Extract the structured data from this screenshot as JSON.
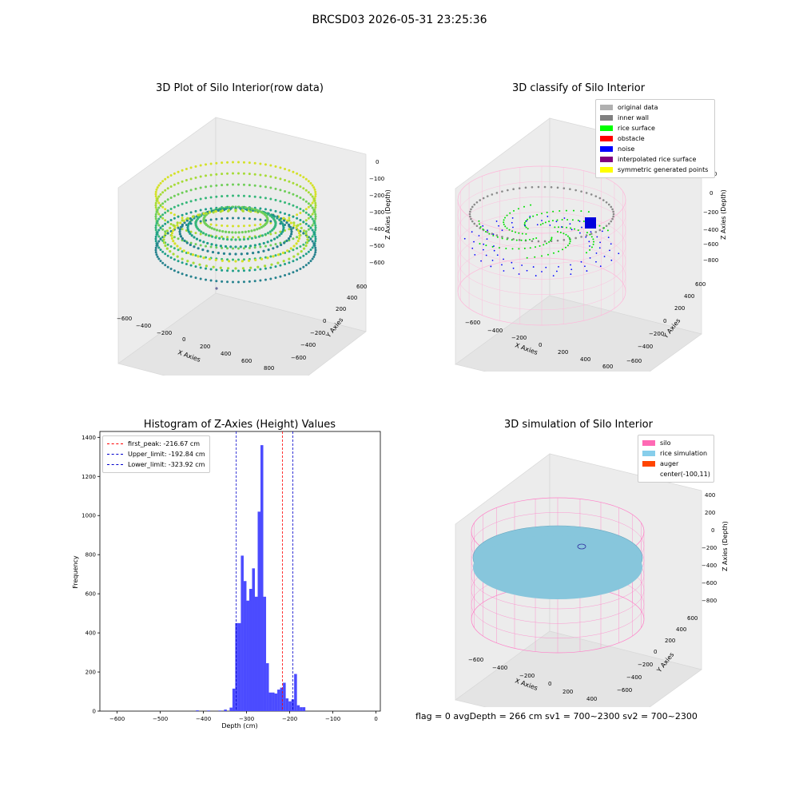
{
  "suptitle": "BRCSD03 2026-05-31 23:25:36",
  "footer": "flag = 0     avgDepth = 266 cm  sv1 = 700~2300  sv2 = 700~2300",
  "chart_data": [
    {
      "type": "scatter",
      "title": "3D Plot of Silo Interior(row data)",
      "xlabel": "X Axies",
      "ylabel": "Y Axies",
      "zlabel": "Z Axies (Depth)",
      "x_ticks": [
        "−600",
        "−400",
        "−200",
        "0",
        "200",
        "400",
        "600",
        "800"
      ],
      "y_ticks": [
        "−600",
        "−400",
        "−200",
        "0",
        "200",
        "400",
        "600"
      ],
      "z_ticks": [
        "0",
        "−100",
        "−200",
        "−300",
        "−400",
        "−500",
        "−600"
      ],
      "colormap": "viridis",
      "grid": true
    },
    {
      "type": "scatter",
      "title": "3D classify of Silo Interior",
      "xlabel": "X Axies",
      "ylabel": "Y Axies",
      "zlabel": "Z Axies (Depth)",
      "x_ticks": [
        "−600",
        "−400",
        "−200",
        "0",
        "200",
        "400",
        "600"
      ],
      "y_ticks": [
        "−600",
        "−400",
        "−200",
        "0",
        "200",
        "400",
        "600"
      ],
      "z_ticks": [
        "200",
        "0",
        "−200",
        "−400",
        "−600",
        "−800"
      ],
      "legend": [
        {
          "name": "original data",
          "color": "#b0b0b0"
        },
        {
          "name": "inner wall",
          "color": "#808080"
        },
        {
          "name": "rice surface",
          "color": "#00ff00"
        },
        {
          "name": "obstacle",
          "color": "#ff0000"
        },
        {
          "name": "noise",
          "color": "#0000ff"
        },
        {
          "name": "interpolated rice surface",
          "color": "#800080"
        },
        {
          "name": "symmetric generated points",
          "color": "#ffff00"
        }
      ],
      "legend_position": "top-right",
      "grid": true
    },
    {
      "type": "bar",
      "title": "Histogram of Z-Axies (Height) Values",
      "xlabel": "Depth (cm)",
      "ylabel": "Frequency",
      "xlim": [
        -640,
        10
      ],
      "ylim": [
        0,
        1430
      ],
      "x_ticks": [
        -600,
        -500,
        -400,
        -300,
        -200,
        -100,
        0
      ],
      "y_ticks": [
        0,
        200,
        400,
        600,
        800,
        1000,
        1200,
        1400
      ],
      "bin_width": 6.5,
      "bins": [
        {
          "x": -414,
          "value": 4
        },
        {
          "x": -388,
          "value": 3
        },
        {
          "x": -362,
          "value": 3
        },
        {
          "x": -349,
          "value": 8
        },
        {
          "x": -336,
          "value": 18
        },
        {
          "x": -329.5,
          "value": 115
        },
        {
          "x": -323,
          "value": 450
        },
        {
          "x": -316.5,
          "value": 450
        },
        {
          "x": -310,
          "value": 795
        },
        {
          "x": -303.5,
          "value": 665
        },
        {
          "x": -297,
          "value": 565
        },
        {
          "x": -290.5,
          "value": 625
        },
        {
          "x": -284,
          "value": 730
        },
        {
          "x": -277.5,
          "value": 585
        },
        {
          "x": -271,
          "value": 1020
        },
        {
          "x": -264.5,
          "value": 1360
        },
        {
          "x": -258,
          "value": 585
        },
        {
          "x": -251.5,
          "value": 245
        },
        {
          "x": -245,
          "value": 95
        },
        {
          "x": -238.5,
          "value": 95
        },
        {
          "x": -232,
          "value": 90
        },
        {
          "x": -225.5,
          "value": 110
        },
        {
          "x": -219,
          "value": 120
        },
        {
          "x": -212.5,
          "value": 145
        },
        {
          "x": -206,
          "value": 65
        },
        {
          "x": -199.5,
          "value": 50
        },
        {
          "x": -193,
          "value": 60
        },
        {
          "x": -186.5,
          "value": 190
        },
        {
          "x": -180,
          "value": 30
        },
        {
          "x": -173.5,
          "value": 20
        },
        {
          "x": -167,
          "value": 20
        }
      ],
      "bar_color": "#4b4bff",
      "lines": [
        {
          "name": "first_peak: -216.67 cm",
          "x": -216.67,
          "color": "#ff0000"
        },
        {
          "name": "Upper_limit: -192.84 cm",
          "x": -192.84,
          "color": "#0000cc"
        },
        {
          "name": "Lower_limit: -323.92 cm",
          "x": -323.92,
          "color": "#0000cc"
        }
      ],
      "legend_position": "top-left"
    },
    {
      "type": "scatter",
      "title": "3D simulation of Silo Interior",
      "xlabel": "X Axies",
      "ylabel": "Y Axies",
      "zlabel": "Z Axies (Depth)",
      "x_ticks": [
        "−600",
        "−400",
        "−200",
        "0",
        "200",
        "400"
      ],
      "y_ticks": [
        "−600",
        "−400",
        "−200",
        "0",
        "200",
        "400",
        "600"
      ],
      "z_ticks": [
        "400",
        "200",
        "0",
        "−200",
        "−400",
        "−600",
        "−800"
      ],
      "legend": [
        {
          "name": "silo",
          "color": "#ff69b4"
        },
        {
          "name": "rice simulation",
          "color": "#87ceeb"
        },
        {
          "name": "auger",
          "color": "#ff4500"
        },
        {
          "name": "center(-100,11)",
          "color": ""
        }
      ],
      "legend_position": "top-right",
      "grid": true
    }
  ]
}
